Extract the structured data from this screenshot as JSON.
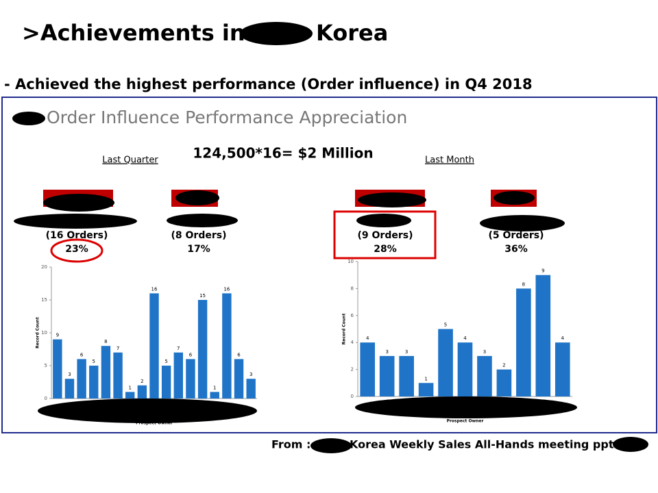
{
  "header": {
    "title_left": ">Achievements in",
    "title_right": "Korea",
    "subtitle": "- Achieved the highest performance (Order influence) in Q4 2018"
  },
  "panel": {
    "heading": "Order Influence Performance Appreciation",
    "formula": "124,500*16= $2 Million",
    "groups": [
      {
        "label": "Last Quarter",
        "cards": [
          {
            "orders": "(16 Orders)",
            "share": "23%"
          },
          {
            "orders": "(8 Orders)",
            "share": "17%"
          }
        ]
      },
      {
        "label": "Last Month",
        "cards": [
          {
            "orders": "(9 Orders)",
            "share": "28%"
          },
          {
            "orders": "(5 Orders)",
            "share": "36%"
          }
        ]
      }
    ]
  },
  "chart_data": [
    {
      "type": "bar",
      "y_label": "Record Count",
      "x_label": "Prospect Owner",
      "color": "#1f74c8",
      "ylim": [
        0,
        20
      ],
      "yticks": [
        0,
        5,
        10,
        15,
        20
      ],
      "values": [
        9,
        3,
        6,
        5,
        8,
        7,
        1,
        2,
        16,
        5,
        7,
        6,
        15,
        1,
        16,
        6,
        3
      ]
    },
    {
      "type": "bar",
      "y_label": "Record Count",
      "x_label": "Prospect Owner",
      "color": "#1f74c8",
      "ylim": [
        0,
        10
      ],
      "yticks": [
        0,
        2,
        4,
        6,
        8,
        10
      ],
      "values": [
        4,
        3,
        3,
        1,
        5,
        4,
        3,
        2,
        8,
        9,
        4
      ]
    }
  ],
  "footer": {
    "prefix": "From :",
    "text": "Korea Weekly Sales All-Hands meeting ppt"
  }
}
